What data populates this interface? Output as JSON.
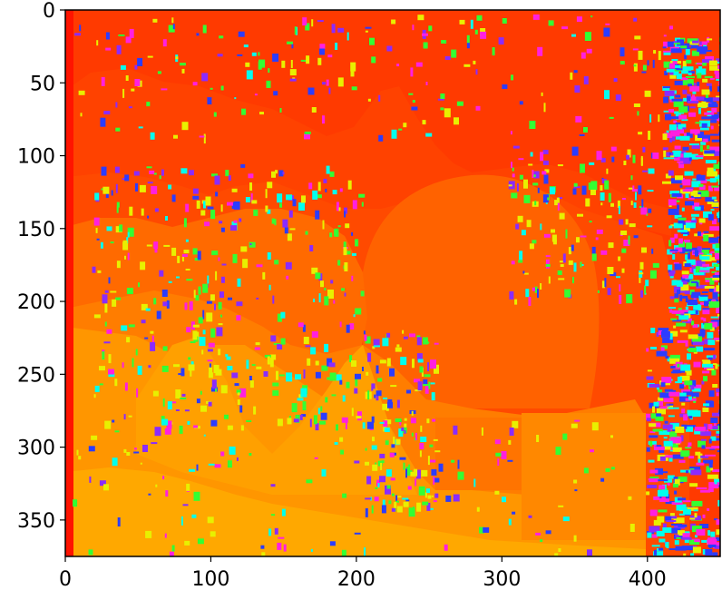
{
  "chart_data": {
    "type": "heatmap",
    "title": "",
    "xlabel": "",
    "ylabel": "",
    "colormap": "hsv-like (red → orange → yellow → green → cyan → blue → magenta)",
    "image_width": 450,
    "image_height": 375,
    "xlim": [
      0,
      450
    ],
    "ylim": [
      375,
      0
    ],
    "xticks": [
      0,
      100,
      200,
      300,
      400
    ],
    "yticks": [
      0,
      50,
      100,
      150,
      200,
      250,
      300,
      350
    ],
    "xtick_labels": [
      "0",
      "100",
      "200",
      "300",
      "400"
    ],
    "ytick_labels": [
      "0",
      "50",
      "100",
      "150",
      "200",
      "250",
      "300",
      "350"
    ],
    "colors": {
      "background_red": "#ff3500",
      "left_edge_red": "#ff1400",
      "red_orange": "#ff4800",
      "orange": "#ff6a00",
      "orange_light": "#ff8400",
      "amber": "#ff9a00",
      "gold": "#ffb000",
      "yellow": "#e8f000",
      "green": "#33ff33",
      "cyan": "#00ffee",
      "blue": "#2b3cff",
      "purple": "#8a2bff",
      "magenta": "#ff20e0"
    }
  }
}
